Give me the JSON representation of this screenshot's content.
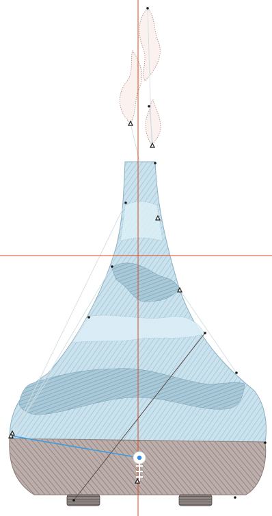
{
  "app": {
    "view": "embroidery-design-canvas",
    "design": "aroma-diffuser"
  },
  "colors": {
    "background": "#ffffff",
    "guide_line": "#d9481f",
    "vase_fill": "#c9e2ee",
    "vase_stitch": "#94b7c8",
    "wave_fill": "#9fc2d3",
    "light_band": "#dceff7",
    "base_fill": "#b7a9a6",
    "base_stitch": "#8c7b78",
    "foot_fill": "#6f6866",
    "steam_fill": "#fbf1ef",
    "steam_outline": "#b8938c",
    "selection_line": "#3c9be0",
    "connector_line": "#5b4d49",
    "origin_marker": "#2f8ce0"
  },
  "icons": {
    "node": "stitch-node-icon",
    "start_point": "start-point-icon",
    "origin": "origin-marker-icon"
  }
}
